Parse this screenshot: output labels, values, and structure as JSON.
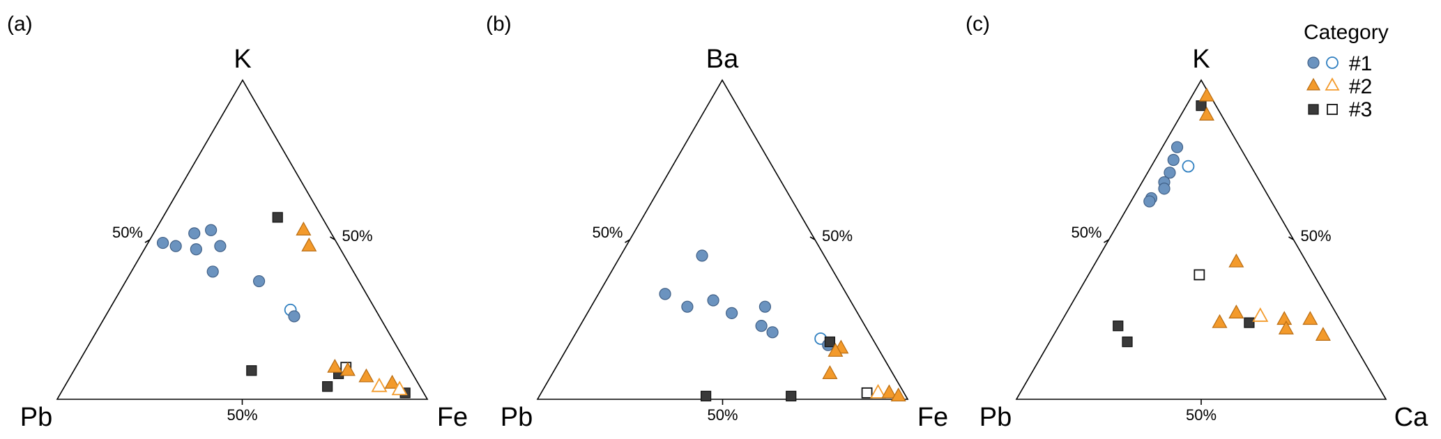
{
  "colors": {
    "cat1_fill": "#6b93bf",
    "cat1_stroke": "#3f5f86",
    "cat1_open": "#2f7fc0",
    "cat2_fill": "#f39a2b",
    "cat2_stroke": "#b86b10",
    "cat3_fill": "#3a3a3a",
    "cat3_stroke": "#111111",
    "axis": "#000000"
  },
  "legend": {
    "title": "Category",
    "entries": [
      {
        "label": "#1",
        "category": 1,
        "marker": "circle"
      },
      {
        "label": "#2",
        "category": 2,
        "marker": "triangle"
      },
      {
        "label": "#3",
        "category": 3,
        "marker": "square"
      }
    ],
    "placement": "top-right"
  },
  "chart_data": [
    {
      "type": "scatter",
      "subtype": "ternary",
      "panel_label": "(a)",
      "vertices": {
        "top": "K",
        "left": "Pb",
        "right": "Fe"
      },
      "tick_labels": {
        "left_edge": "50%",
        "right_edge": "50%",
        "bottom_edge": "50%"
      },
      "units": "fractions (top, left, right)",
      "points": [
        {
          "cat": 1,
          "filled": true,
          "top": 0.49,
          "left": 0.47,
          "right": 0.04
        },
        {
          "cat": 1,
          "filled": true,
          "top": 0.48,
          "left": 0.44,
          "right": 0.08
        },
        {
          "cat": 1,
          "filled": true,
          "top": 0.52,
          "left": 0.37,
          "right": 0.11
        },
        {
          "cat": 1,
          "filled": true,
          "top": 0.53,
          "left": 0.32,
          "right": 0.15
        },
        {
          "cat": 1,
          "filled": true,
          "top": 0.47,
          "left": 0.39,
          "right": 0.14
        },
        {
          "cat": 1,
          "filled": true,
          "top": 0.48,
          "left": 0.32,
          "right": 0.2
        },
        {
          "cat": 1,
          "filled": true,
          "top": 0.4,
          "left": 0.38,
          "right": 0.22
        },
        {
          "cat": 1,
          "filled": true,
          "top": 0.37,
          "left": 0.27,
          "right": 0.36
        },
        {
          "cat": 1,
          "filled": false,
          "top": 0.28,
          "left": 0.23,
          "right": 0.49
        },
        {
          "cat": 1,
          "filled": true,
          "top": 0.26,
          "left": 0.23,
          "right": 0.51
        },
        {
          "cat": 3,
          "filled": true,
          "top": 0.57,
          "left": 0.12,
          "right": 0.31
        },
        {
          "cat": 3,
          "filled": true,
          "top": 0.09,
          "left": 0.43,
          "right": 0.48
        },
        {
          "cat": 3,
          "filled": true,
          "top": 0.04,
          "left": 0.25,
          "right": 0.71
        },
        {
          "cat": 3,
          "filled": true,
          "top": 0.08,
          "left": 0.2,
          "right": 0.72
        },
        {
          "cat": 3,
          "filled": false,
          "top": 0.1,
          "left": 0.17,
          "right": 0.73
        },
        {
          "cat": 3,
          "filled": true,
          "top": 0.02,
          "left": 0.05,
          "right": 0.93
        },
        {
          "cat": 2,
          "filled": true,
          "top": 0.53,
          "left": 0.07,
          "right": 0.4
        },
        {
          "cat": 2,
          "filled": true,
          "top": 0.48,
          "left": 0.08,
          "right": 0.44
        },
        {
          "cat": 2,
          "filled": true,
          "top": 0.1,
          "left": 0.2,
          "right": 0.7
        },
        {
          "cat": 2,
          "filled": true,
          "top": 0.09,
          "left": 0.17,
          "right": 0.74
        },
        {
          "cat": 2,
          "filled": true,
          "top": 0.07,
          "left": 0.13,
          "right": 0.8
        },
        {
          "cat": 2,
          "filled": false,
          "top": 0.04,
          "left": 0.11,
          "right": 0.85
        },
        {
          "cat": 2,
          "filled": true,
          "top": 0.05,
          "left": 0.07,
          "right": 0.88
        },
        {
          "cat": 2,
          "filled": false,
          "top": 0.03,
          "left": 0.06,
          "right": 0.91
        }
      ]
    },
    {
      "type": "scatter",
      "subtype": "ternary",
      "panel_label": "(b)",
      "vertices": {
        "top": "Ba",
        "left": "Pb",
        "right": "Fe"
      },
      "tick_labels": {
        "left_edge": "50%",
        "right_edge": "50%",
        "bottom_edge": "50%"
      },
      "units": "fractions (top, left, right)",
      "points": [
        {
          "cat": 1,
          "filled": true,
          "top": 0.45,
          "left": 0.33,
          "right": 0.22
        },
        {
          "cat": 1,
          "filled": true,
          "top": 0.33,
          "left": 0.49,
          "right": 0.18
        },
        {
          "cat": 1,
          "filled": true,
          "top": 0.29,
          "left": 0.45,
          "right": 0.26
        },
        {
          "cat": 1,
          "filled": true,
          "top": 0.31,
          "left": 0.37,
          "right": 0.32
        },
        {
          "cat": 1,
          "filled": true,
          "top": 0.27,
          "left": 0.34,
          "right": 0.39
        },
        {
          "cat": 1,
          "filled": true,
          "top": 0.29,
          "left": 0.24,
          "right": 0.47
        },
        {
          "cat": 1,
          "filled": true,
          "top": 0.23,
          "left": 0.28,
          "right": 0.49
        },
        {
          "cat": 1,
          "filled": true,
          "top": 0.21,
          "left": 0.26,
          "right": 0.53
        },
        {
          "cat": 1,
          "filled": false,
          "top": 0.19,
          "left": 0.14,
          "right": 0.67
        },
        {
          "cat": 1,
          "filled": true,
          "top": 0.17,
          "left": 0.13,
          "right": 0.7
        },
        {
          "cat": 3,
          "filled": true,
          "top": 0.18,
          "left": 0.12,
          "right": 0.7
        },
        {
          "cat": 3,
          "filled": true,
          "top": 0.01,
          "left": 0.54,
          "right": 0.45
        },
        {
          "cat": 3,
          "filled": true,
          "top": 0.01,
          "left": 0.31,
          "right": 0.68
        },
        {
          "cat": 3,
          "filled": false,
          "top": 0.02,
          "left": 0.1,
          "right": 0.88
        },
        {
          "cat": 2,
          "filled": true,
          "top": 0.16,
          "left": 0.1,
          "right": 0.74
        },
        {
          "cat": 2,
          "filled": true,
          "top": 0.15,
          "left": 0.12,
          "right": 0.73
        },
        {
          "cat": 2,
          "filled": true,
          "top": 0.08,
          "left": 0.17,
          "right": 0.75
        },
        {
          "cat": 2,
          "filled": false,
          "top": 0.02,
          "left": 0.07,
          "right": 0.91
        },
        {
          "cat": 2,
          "filled": true,
          "top": 0.02,
          "left": 0.04,
          "right": 0.94
        },
        {
          "cat": 2,
          "filled": true,
          "top": 0.01,
          "left": 0.02,
          "right": 0.97
        }
      ]
    },
    {
      "type": "scatter",
      "subtype": "ternary",
      "panel_label": "(c)",
      "vertices": {
        "top": "K",
        "left": "Pb",
        "right": "Ca"
      },
      "tick_labels": {
        "left_edge": "50%",
        "right_edge": "50%",
        "bottom_edge": "50%"
      },
      "units": "fractions (top, left, right)",
      "points": [
        {
          "cat": 1,
          "filled": true,
          "top": 0.79,
          "left": 0.17,
          "right": 0.04
        },
        {
          "cat": 1,
          "filled": true,
          "top": 0.75,
          "left": 0.2,
          "right": 0.05
        },
        {
          "cat": 1,
          "filled": true,
          "top": 0.71,
          "left": 0.23,
          "right": 0.06
        },
        {
          "cat": 1,
          "filled": true,
          "top": 0.68,
          "left": 0.26,
          "right": 0.06
        },
        {
          "cat": 1,
          "filled": true,
          "top": 0.66,
          "left": 0.27,
          "right": 0.07
        },
        {
          "cat": 1,
          "filled": true,
          "top": 0.63,
          "left": 0.32,
          "right": 0.05
        },
        {
          "cat": 1,
          "filled": true,
          "top": 0.62,
          "left": 0.33,
          "right": 0.05
        },
        {
          "cat": 1,
          "filled": false,
          "top": 0.73,
          "left": 0.17,
          "right": 0.1
        },
        {
          "cat": 3,
          "filled": true,
          "top": 0.92,
          "left": 0.04,
          "right": 0.04
        },
        {
          "cat": 3,
          "filled": false,
          "top": 0.39,
          "left": 0.31,
          "right": 0.3
        },
        {
          "cat": 3,
          "filled": true,
          "top": 0.23,
          "left": 0.61,
          "right": 0.16
        },
        {
          "cat": 3,
          "filled": true,
          "top": 0.18,
          "left": 0.61,
          "right": 0.21
        },
        {
          "cat": 3,
          "filled": true,
          "top": 0.24,
          "left": 0.25,
          "right": 0.51
        },
        {
          "cat": 2,
          "filled": true,
          "top": 0.95,
          "left": 0.01,
          "right": 0.04
        },
        {
          "cat": 2,
          "filled": true,
          "top": 0.89,
          "left": 0.04,
          "right": 0.07
        },
        {
          "cat": 2,
          "filled": true,
          "top": 0.43,
          "left": 0.19,
          "right": 0.38
        },
        {
          "cat": 2,
          "filled": true,
          "top": 0.27,
          "left": 0.27,
          "right": 0.46
        },
        {
          "cat": 2,
          "filled": true,
          "top": 0.24,
          "left": 0.33,
          "right": 0.43
        },
        {
          "cat": 2,
          "filled": false,
          "top": 0.26,
          "left": 0.21,
          "right": 0.53
        },
        {
          "cat": 2,
          "filled": true,
          "top": 0.25,
          "left": 0.15,
          "right": 0.6
        },
        {
          "cat": 2,
          "filled": true,
          "top": 0.22,
          "left": 0.16,
          "right": 0.62
        },
        {
          "cat": 2,
          "filled": true,
          "top": 0.25,
          "left": 0.08,
          "right": 0.67
        },
        {
          "cat": 2,
          "filled": true,
          "top": 0.2,
          "left": 0.07,
          "right": 0.73
        }
      ]
    }
  ]
}
